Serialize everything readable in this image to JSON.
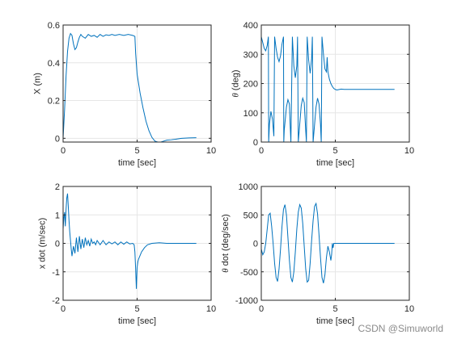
{
  "watermark": "CSDN @Simuworld",
  "chart_data": [
    {
      "type": "line",
      "xlabel": "time [sec]",
      "ylabel": "X (m)",
      "xlim": [
        0,
        10
      ],
      "ylim": [
        -0.02,
        0.6
      ],
      "xticks": [
        0,
        5,
        10
      ],
      "yticks": [
        0,
        0.2,
        0.4,
        0.6
      ],
      "yticklabels": [
        "0",
        "0.2",
        "0.4",
        "0.6"
      ],
      "grid": true,
      "color": "#0072bd",
      "series": [
        {
          "x": [
            0,
            0.1,
            0.2,
            0.3,
            0.4,
            0.5,
            0.6,
            0.7,
            0.8,
            0.9,
            1.0,
            1.1,
            1.2,
            1.3,
            1.5,
            1.7,
            1.9,
            2.1,
            2.3,
            2.5,
            2.7,
            2.9,
            3.1,
            3.3,
            3.5,
            3.8,
            4.1,
            4.4,
            4.7,
            4.85,
            4.9,
            5.0,
            5.2,
            5.4,
            5.6,
            5.8,
            6.0,
            6.2,
            6.4,
            6.6,
            6.8,
            7.0,
            7.3,
            7.6,
            8.0,
            8.5,
            9.0
          ],
          "y": [
            0.0,
            0.15,
            0.33,
            0.46,
            0.53,
            0.555,
            0.545,
            0.5,
            0.47,
            0.48,
            0.51,
            0.535,
            0.55,
            0.54,
            0.53,
            0.55,
            0.54,
            0.545,
            0.535,
            0.55,
            0.54,
            0.548,
            0.545,
            0.55,
            0.545,
            0.55,
            0.545,
            0.55,
            0.545,
            0.54,
            0.45,
            0.34,
            0.24,
            0.16,
            0.09,
            0.04,
            0.005,
            -0.015,
            -0.02,
            -0.02,
            -0.015,
            -0.01,
            -0.008,
            -0.005,
            0.0,
            0.002,
            0.003
          ]
        }
      ]
    },
    {
      "type": "line",
      "xlabel": "time [sec]",
      "ylabel": "θ (deg)",
      "ylabel_italic": "θ",
      "ylabel_rest": " (deg)",
      "xlim": [
        0,
        10
      ],
      "ylim": [
        0,
        400
      ],
      "xticks": [
        0,
        5,
        10
      ],
      "yticks": [
        0,
        100,
        200,
        300,
        400
      ],
      "yticklabels": [
        "0",
        "100",
        "200",
        "300",
        "400"
      ],
      "grid": true,
      "color": "#0072bd",
      "series": [
        {
          "x": [
            0,
            0.1,
            0.2,
            0.3,
            0.4,
            0.48,
            0.5,
            0.55,
            0.65,
            0.75,
            0.85,
            0.9,
            1.0,
            1.1,
            1.2,
            1.3,
            1.4,
            1.5,
            1.52,
            1.55,
            1.7,
            1.8,
            1.9,
            1.95,
            2.0,
            2.1,
            2.2,
            2.3,
            2.4,
            2.45,
            2.5,
            2.7,
            2.8,
            2.9,
            3.0,
            3.05,
            3.1,
            3.2,
            3.3,
            3.4,
            3.45,
            3.5,
            3.7,
            3.8,
            3.9,
            4.0,
            4.05,
            4.1,
            4.2,
            4.3,
            4.4,
            4.45,
            4.5,
            4.6,
            4.7,
            4.8,
            4.9,
            5.0,
            5.1,
            5.2,
            5.4,
            5.6,
            5.8,
            6.0,
            7.0,
            8.0,
            9.0
          ],
          "y": [
            360,
            340,
            320,
            312,
            330,
            360,
            0,
            60,
            105,
            80,
            20,
            360,
            320,
            290,
            275,
            295,
            335,
            360,
            0,
            40,
            120,
            145,
            130,
            60,
            0,
            360,
            260,
            220,
            260,
            360,
            0,
            125,
            150,
            135,
            40,
            0,
            360,
            280,
            235,
            285,
            360,
            0,
            120,
            150,
            130,
            60,
            0,
            360,
            300,
            250,
            240,
            290,
            240,
            215,
            200,
            190,
            183,
            180,
            178,
            179,
            181,
            180,
            180,
            180,
            180,
            180,
            180
          ]
        }
      ]
    },
    {
      "type": "line",
      "xlabel": "time [sec]",
      "ylabel": "x dot (m/sec)",
      "xlim": [
        0,
        10
      ],
      "ylim": [
        -2,
        2
      ],
      "xticks": [
        0,
        5,
        10
      ],
      "yticks": [
        -2,
        -1,
        0,
        1,
        2
      ],
      "yticklabels": [
        "-2",
        "-1",
        "0",
        "1",
        "2"
      ],
      "grid": true,
      "color": "#0072bd",
      "series": [
        {
          "x": [
            0,
            0.05,
            0.1,
            0.15,
            0.2,
            0.25,
            0.3,
            0.35,
            0.4,
            0.45,
            0.5,
            0.55,
            0.6,
            0.7,
            0.8,
            0.9,
            1.0,
            1.1,
            1.2,
            1.3,
            1.4,
            1.5,
            1.6,
            1.7,
            1.8,
            1.9,
            2.0,
            2.1,
            2.2,
            2.3,
            2.5,
            2.7,
            2.9,
            3.1,
            3.3,
            3.5,
            3.7,
            3.9,
            4.1,
            4.3,
            4.5,
            4.7,
            4.8,
            4.85,
            4.9,
            4.95,
            5.0,
            5.05,
            5.1,
            5.3,
            5.5,
            5.7,
            6.0,
            6.5,
            7.0,
            8.0,
            9.0
          ],
          "y": [
            0.5,
            0.9,
            1.1,
            0.6,
            1.2,
            1.6,
            1.75,
            1.3,
            0.8,
            0.4,
            0.1,
            -0.2,
            -0.45,
            -0.1,
            -0.35,
            0.2,
            -0.3,
            0.25,
            -0.2,
            0.15,
            -0.15,
            0.2,
            -0.05,
            0.1,
            -0.1,
            0.15,
            0.0,
            0.05,
            -0.05,
            0.1,
            -0.05,
            0.1,
            -0.05,
            0.05,
            -0.02,
            0.05,
            -0.05,
            0.05,
            -0.03,
            0.05,
            -0.02,
            0.0,
            -0.05,
            -0.3,
            -0.9,
            -1.6,
            -0.85,
            -0.65,
            -0.55,
            -0.3,
            -0.15,
            -0.05,
            0.0,
            0.02,
            0.0,
            0.0,
            0.0
          ]
        }
      ]
    },
    {
      "type": "line",
      "xlabel": "time [sec]",
      "ylabel": "θ dot (deg/sec)",
      "ylabel_italic": "θ",
      "ylabel_rest": " dot (deg/sec)",
      "xlim": [
        0,
        10
      ],
      "ylim": [
        -1000,
        1000
      ],
      "xticks": [
        0,
        5,
        10
      ],
      "yticks": [
        -1000,
        -500,
        0,
        500,
        1000
      ],
      "yticklabels": [
        "-1000",
        "-500",
        "0",
        "500",
        "1000"
      ],
      "grid": true,
      "color": "#0072bd",
      "series": [
        {
          "x": [
            0,
            0.1,
            0.2,
            0.3,
            0.4,
            0.5,
            0.6,
            0.7,
            0.8,
            0.9,
            1.0,
            1.1,
            1.2,
            1.3,
            1.4,
            1.5,
            1.6,
            1.7,
            1.8,
            1.9,
            2.0,
            2.1,
            2.2,
            2.3,
            2.4,
            2.5,
            2.6,
            2.7,
            2.8,
            2.9,
            3.0,
            3.1,
            3.2,
            3.3,
            3.4,
            3.5,
            3.6,
            3.7,
            3.8,
            3.9,
            4.0,
            4.1,
            4.2,
            4.3,
            4.4,
            4.5,
            4.6,
            4.7,
            4.75,
            4.8,
            4.85,
            4.9,
            5.0,
            6.0,
            7.0,
            8.0,
            9.0
          ],
          "y": [
            -100,
            -200,
            -150,
            0,
            250,
            500,
            530,
            300,
            0,
            -350,
            -600,
            -670,
            -450,
            -100,
            300,
            600,
            680,
            500,
            100,
            -300,
            -600,
            -680,
            -500,
            -150,
            250,
            550,
            680,
            620,
            350,
            -50,
            -450,
            -680,
            -650,
            -350,
            50,
            400,
            650,
            700,
            520,
            150,
            -250,
            -600,
            -700,
            -550,
            -250,
            -50,
            -150,
            -300,
            -200,
            0,
            -80,
            0,
            0,
            0,
            0,
            0,
            0
          ]
        }
      ]
    }
  ]
}
